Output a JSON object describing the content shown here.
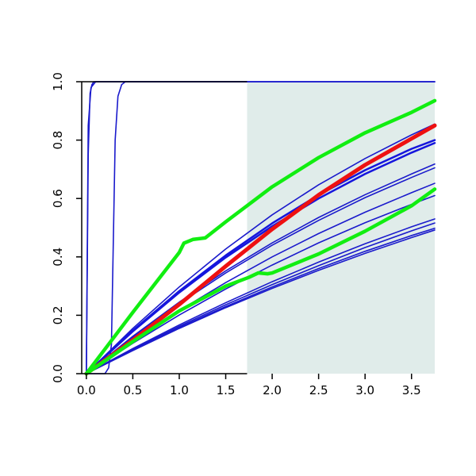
{
  "chart_data": {
    "type": "line",
    "title": "",
    "xlabel": "",
    "ylabel": "",
    "xlim": [
      -0.05,
      3.75
    ],
    "ylim": [
      0.0,
      1.0
    ],
    "x_ticks": [
      "0.0",
      "0.5",
      "1.0",
      "1.5",
      "2.0",
      "2.5",
      "3.0",
      "3.5"
    ],
    "x_tick_values": [
      0.0,
      0.5,
      1.0,
      1.5,
      2.0,
      2.5,
      3.0,
      3.5
    ],
    "y_ticks": [
      "0.0",
      "0.2",
      "0.4",
      "0.6",
      "0.8",
      "1.0"
    ],
    "y_tick_values": [
      0.0,
      0.2,
      0.4,
      0.6,
      0.8,
      1.0
    ],
    "grid": false,
    "legend": "none",
    "shaded_region": {
      "x_from": 1.73,
      "x_to": 3.75,
      "color": "#e0ecea"
    },
    "colors": {
      "thin": "#1a1acc",
      "medium": "#1515dd",
      "highlight_red": "#ee1111",
      "highlight_green": "#11ee11"
    },
    "series": [
      {
        "color": "blue",
        "x": [
          0,
          0.02,
          0.04,
          0.06,
          0.08,
          0.12,
          3.75
        ],
        "y": [
          0,
          0.75,
          0.96,
          0.99,
          1.0,
          1.0,
          1.0
        ]
      },
      {
        "color": "blue",
        "x": [
          0,
          0.02,
          0.05,
          0.1,
          3.75
        ],
        "y": [
          0,
          0.85,
          0.98,
          1.0,
          1.0
        ]
      },
      {
        "color": "blue",
        "x": [
          0,
          0.1,
          0.2,
          0.24,
          0.27,
          0.29,
          0.31,
          0.34,
          0.38,
          0.42,
          3.75
        ],
        "y": [
          0,
          0.0,
          0.0,
          0.02,
          0.1,
          0.45,
          0.8,
          0.95,
          0.99,
          1.0,
          1.0
        ]
      },
      {
        "color": "blue",
        "x": [
          0,
          0.5,
          1.0,
          1.5,
          2.0,
          2.5,
          3.0,
          3.5,
          3.75
        ],
        "y": [
          0,
          0.155,
          0.297,
          0.427,
          0.544,
          0.647,
          0.737,
          0.818,
          0.855
        ]
      },
      {
        "color": "blue",
        "x": [
          0,
          0.5,
          1.0,
          1.5,
          2.0,
          2.5,
          3.0,
          3.5,
          3.75
        ],
        "y": [
          0,
          0.148,
          0.283,
          0.405,
          0.515,
          0.612,
          0.697,
          0.77,
          0.8
        ]
      },
      {
        "color": "blue",
        "x": [
          0,
          0.5,
          1.0,
          1.5,
          2.0,
          2.5,
          3.0,
          3.5,
          3.75
        ],
        "y": [
          0,
          0.145,
          0.278,
          0.398,
          0.505,
          0.6,
          0.684,
          0.757,
          0.79
        ]
      },
      {
        "color": "blue",
        "x": [
          0,
          0.5,
          1.0,
          1.5,
          2.0,
          2.5,
          3.0,
          3.5,
          3.75
        ],
        "y": [
          0,
          0.128,
          0.245,
          0.352,
          0.448,
          0.535,
          0.613,
          0.684,
          0.718
        ]
      },
      {
        "color": "blue",
        "x": [
          0,
          0.5,
          1.0,
          1.5,
          2.0,
          2.5,
          3.0,
          3.5,
          3.75
        ],
        "y": [
          0,
          0.125,
          0.24,
          0.345,
          0.44,
          0.525,
          0.603,
          0.672,
          0.705
        ]
      },
      {
        "color": "blue",
        "x": [
          0,
          0.5,
          1.0,
          1.5,
          2.0,
          2.5,
          3.0,
          3.5,
          3.75
        ],
        "y": [
          0,
          0.112,
          0.216,
          0.312,
          0.4,
          0.48,
          0.553,
          0.62,
          0.652
        ]
      },
      {
        "color": "blue",
        "x": [
          0,
          0.5,
          1.0,
          1.5,
          2.0,
          2.5,
          3.0,
          3.5,
          3.75
        ],
        "y": [
          0,
          0.104,
          0.201,
          0.29,
          0.372,
          0.448,
          0.517,
          0.58,
          0.61
        ]
      },
      {
        "color": "blue",
        "x": [
          0,
          0.5,
          1.0,
          1.5,
          2.0,
          2.5,
          3.0,
          3.5,
          3.75
        ],
        "y": [
          0,
          0.086,
          0.167,
          0.243,
          0.315,
          0.382,
          0.445,
          0.503,
          0.53
        ]
      },
      {
        "color": "blue",
        "x": [
          0,
          0.5,
          1.0,
          1.5,
          2.0,
          2.5,
          3.0,
          3.5,
          3.75
        ],
        "y": [
          0,
          0.083,
          0.162,
          0.236,
          0.305,
          0.37,
          0.432,
          0.489,
          0.516
        ]
      },
      {
        "color": "blue",
        "x": [
          0,
          0.5,
          1.0,
          1.5,
          2.0,
          2.5,
          3.0,
          3.5,
          3.75
        ],
        "y": [
          0,
          0.081,
          0.158,
          0.23,
          0.297,
          0.36,
          0.419,
          0.473,
          0.498
        ]
      },
      {
        "color": "blue",
        "x": [
          0,
          0.5,
          1.0,
          1.5,
          2.0,
          2.5,
          3.0,
          3.5,
          3.75
        ],
        "y": [
          0,
          0.079,
          0.155,
          0.226,
          0.292,
          0.354,
          0.412,
          0.466,
          0.492
        ]
      },
      {
        "color": "red",
        "x": [
          0,
          0.5,
          1.0,
          1.5,
          2.0,
          2.5,
          3.0,
          3.5,
          3.75
        ],
        "y": [
          0,
          0.115,
          0.237,
          0.368,
          0.495,
          0.612,
          0.715,
          0.805,
          0.85
        ]
      },
      {
        "color": "green",
        "x": [
          0,
          0.5,
          1.0,
          1.05,
          1.15,
          1.28,
          1.5,
          2.0,
          2.5,
          3.0,
          3.5,
          3.75
        ],
        "y": [
          0,
          0.21,
          0.415,
          0.447,
          0.46,
          0.465,
          0.52,
          0.64,
          0.74,
          0.825,
          0.895,
          0.935
        ]
      },
      {
        "color": "green",
        "x": [
          0,
          0.5,
          1.0,
          1.5,
          1.75,
          1.85,
          1.95,
          2.0,
          2.5,
          3.0,
          3.5,
          3.75
        ],
        "y": [
          0,
          0.11,
          0.215,
          0.3,
          0.33,
          0.345,
          0.342,
          0.345,
          0.41,
          0.488,
          0.575,
          0.632
        ]
      }
    ]
  }
}
